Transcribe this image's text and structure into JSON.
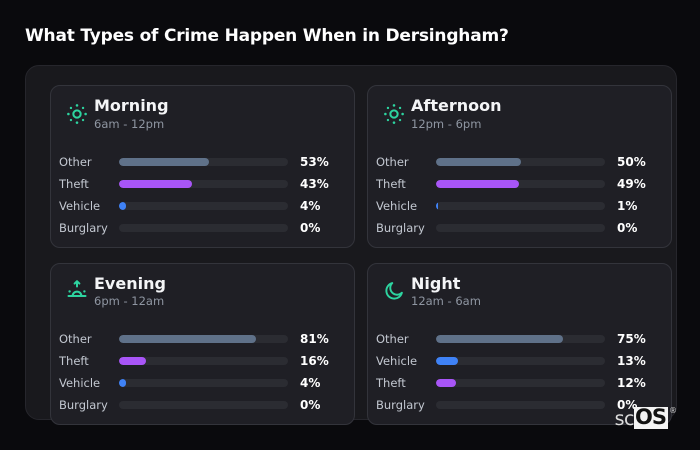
{
  "page": {
    "title": "What Types of Crime Happen When in Dersingham?"
  },
  "colors": {
    "accent": "#2dd4a0",
    "other": "#5f7189",
    "theft": "#a855f7",
    "vehicle": "#3f82f6",
    "burglary": "transparent",
    "track": "#2b2c32"
  },
  "cards": [
    {
      "icon": "sun-icon",
      "title": "Morning",
      "time_range": "6am - 12pm",
      "rows": [
        {
          "label": "Other",
          "pct": 53,
          "value_label": "53%",
          "color_key": "other"
        },
        {
          "label": "Theft",
          "pct": 43,
          "value_label": "43%",
          "color_key": "theft"
        },
        {
          "label": "Vehicle",
          "pct": 4,
          "value_label": "4%",
          "color_key": "vehicle"
        },
        {
          "label": "Burglary",
          "pct": 0,
          "value_label": "0%",
          "color_key": "burglary"
        }
      ]
    },
    {
      "icon": "sun-icon",
      "title": "Afternoon",
      "time_range": "12pm - 6pm",
      "rows": [
        {
          "label": "Other",
          "pct": 50,
          "value_label": "50%",
          "color_key": "other"
        },
        {
          "label": "Theft",
          "pct": 49,
          "value_label": "49%",
          "color_key": "theft"
        },
        {
          "label": "Vehicle",
          "pct": 1,
          "value_label": "1%",
          "color_key": "vehicle"
        },
        {
          "label": "Burglary",
          "pct": 0,
          "value_label": "0%",
          "color_key": "burglary"
        }
      ]
    },
    {
      "icon": "sunrise-icon",
      "title": "Evening",
      "time_range": "6pm - 12am",
      "rows": [
        {
          "label": "Other",
          "pct": 81,
          "value_label": "81%",
          "color_key": "other"
        },
        {
          "label": "Theft",
          "pct": 16,
          "value_label": "16%",
          "color_key": "theft"
        },
        {
          "label": "Vehicle",
          "pct": 4,
          "value_label": "4%",
          "color_key": "vehicle"
        },
        {
          "label": "Burglary",
          "pct": 0,
          "value_label": "0%",
          "color_key": "burglary"
        }
      ]
    },
    {
      "icon": "moon-icon",
      "title": "Night",
      "time_range": "12am - 6am",
      "rows": [
        {
          "label": "Other",
          "pct": 75,
          "value_label": "75%",
          "color_key": "other"
        },
        {
          "label": "Vehicle",
          "pct": 13,
          "value_label": "13%",
          "color_key": "vehicle"
        },
        {
          "label": "Theft",
          "pct": 12,
          "value_label": "12%",
          "color_key": "theft"
        },
        {
          "label": "Burglary",
          "pct": 0,
          "value_label": "0%",
          "color_key": "burglary"
        }
      ]
    }
  ],
  "watermark": {
    "prefix": "sc",
    "brand": "OS",
    "registered": "®"
  },
  "chart_data": [
    {
      "type": "bar",
      "orientation": "horizontal",
      "title": "Morning",
      "subtitle": "6am - 12pm",
      "categories": [
        "Other",
        "Theft",
        "Vehicle",
        "Burglary"
      ],
      "values": [
        53,
        43,
        4,
        0
      ],
      "unit": "%",
      "xlim": [
        0,
        100
      ],
      "grid": false,
      "legend": false
    },
    {
      "type": "bar",
      "orientation": "horizontal",
      "title": "Afternoon",
      "subtitle": "12pm - 6pm",
      "categories": [
        "Other",
        "Theft",
        "Vehicle",
        "Burglary"
      ],
      "values": [
        50,
        49,
        1,
        0
      ],
      "unit": "%",
      "xlim": [
        0,
        100
      ],
      "grid": false,
      "legend": false
    },
    {
      "type": "bar",
      "orientation": "horizontal",
      "title": "Evening",
      "subtitle": "6pm - 12am",
      "categories": [
        "Other",
        "Theft",
        "Vehicle",
        "Burglary"
      ],
      "values": [
        81,
        16,
        4,
        0
      ],
      "unit": "%",
      "xlim": [
        0,
        100
      ],
      "grid": false,
      "legend": false
    },
    {
      "type": "bar",
      "orientation": "horizontal",
      "title": "Night",
      "subtitle": "12am - 6am",
      "categories": [
        "Other",
        "Vehicle",
        "Theft",
        "Burglary"
      ],
      "values": [
        75,
        13,
        12,
        0
      ],
      "unit": "%",
      "xlim": [
        0,
        100
      ],
      "grid": false,
      "legend": false
    }
  ]
}
